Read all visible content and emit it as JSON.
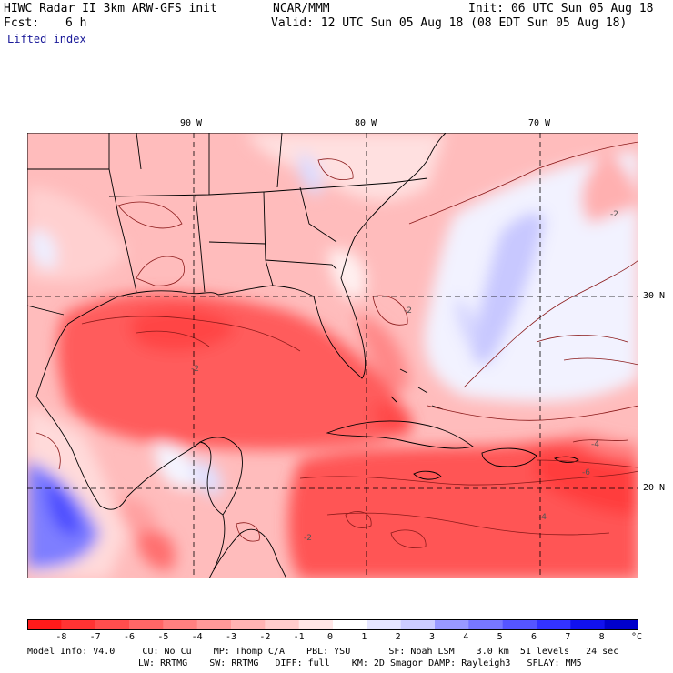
{
  "header": {
    "model_title": "HIWC Radar II 3km ARW-GFS init",
    "org": "NCAR/MMM",
    "init": "Init: 06 UTC Sun 05 Aug 18",
    "fcst_label": "Fcst:",
    "fcst_value": "6 h",
    "valid": "Valid: 12 UTC Sun 05 Aug 18 (08 EDT Sun 05 Aug 18)",
    "field": "Lifted index"
  },
  "map": {
    "lon_labels": [
      "90 W",
      "80 W",
      "70 W"
    ],
    "lat_labels": [
      "30 N",
      "20 N"
    ],
    "contour_labels": [
      "-2",
      "-2",
      "-4",
      "-6",
      "-2",
      "-4",
      "-2"
    ]
  },
  "colorbar": {
    "ticks": [
      "-8",
      "-7",
      "-6",
      "-5",
      "-4",
      "-3",
      "-2",
      "-1",
      "0",
      "1",
      "2",
      "3",
      "4",
      "5",
      "6",
      "7",
      "8"
    ],
    "unit": "°C",
    "colors": [
      "#ff1a1a",
      "#ff3333",
      "#ff4d4d",
      "#ff6666",
      "#ff8080",
      "#ff9999",
      "#ffb3b3",
      "#ffcccc",
      "#ffe6e6",
      "#ffffff",
      "#e6e6ff",
      "#ccccff",
      "#9999ff",
      "#7777ff",
      "#5555ff",
      "#3333ff",
      "#1111ee",
      "#0000cc"
    ]
  },
  "footer": {
    "line1": "Model Info: V4.0     CU: No Cu    MP: Thomp C/A    PBL: YSU       SF: Noah LSM    3.0 km  51 levels   24 sec",
    "line2": "LW: RRTMG    SW: RRTMG   DIFF: full    KM: 2D Smagor DAMP: Rayleigh3   SFLAY: MM5"
  }
}
